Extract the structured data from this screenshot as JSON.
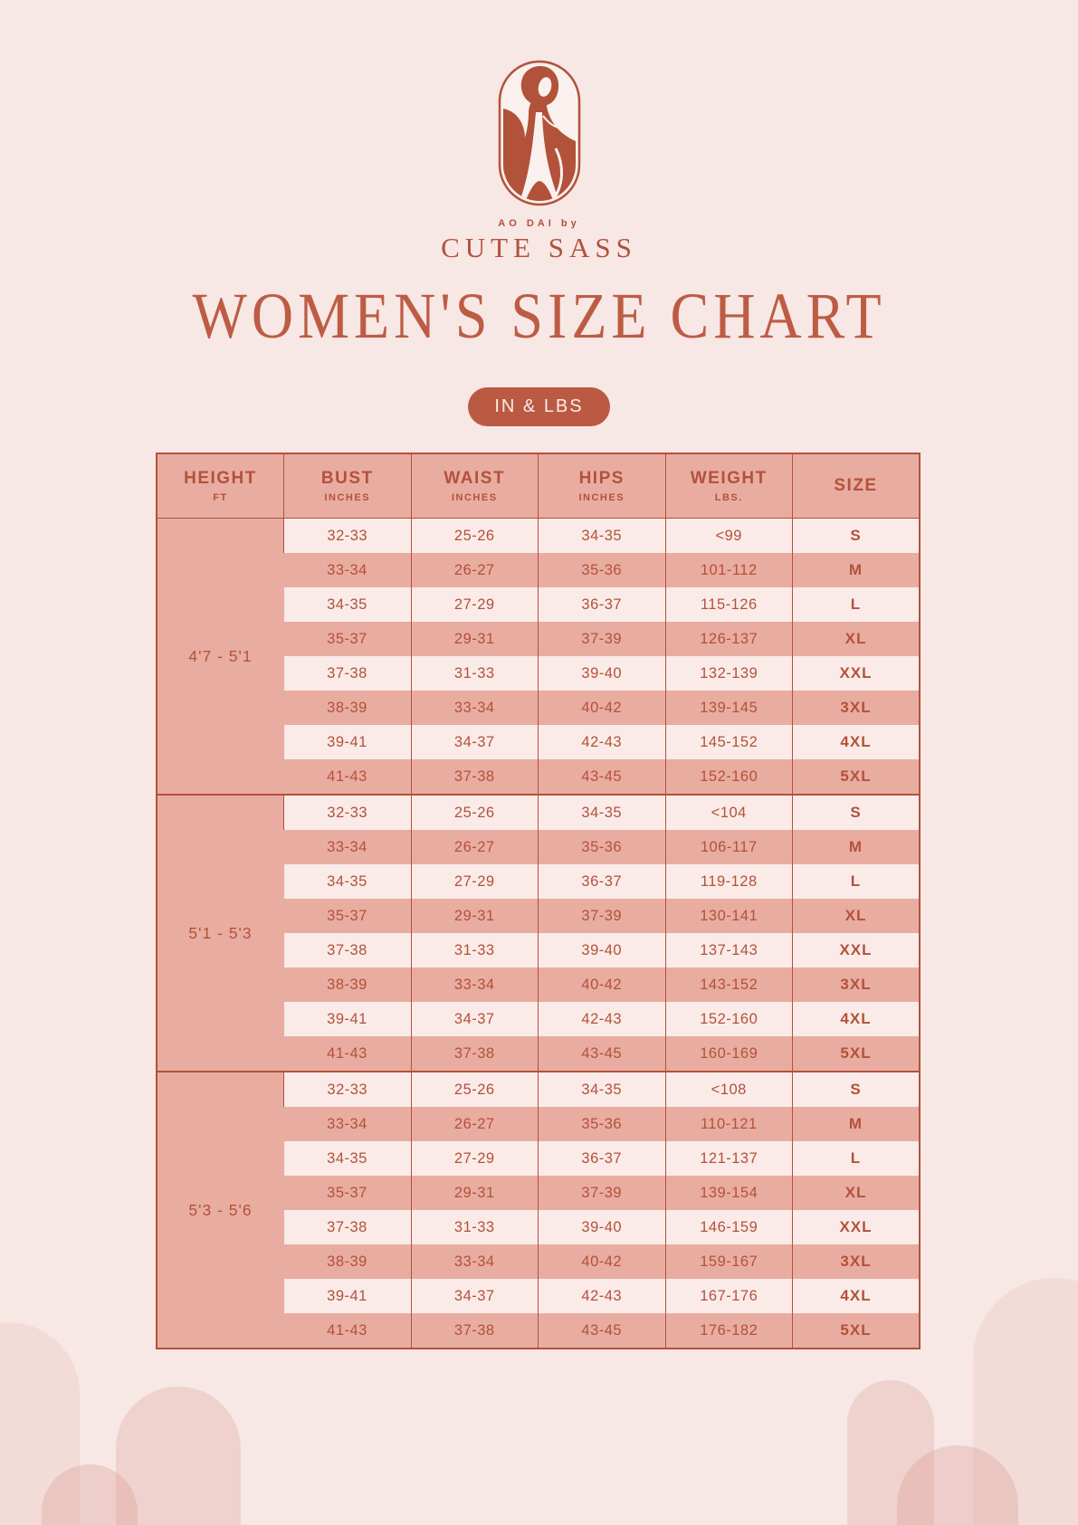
{
  "colors": {
    "background": "#f7e7e5",
    "accent_terracotta": "#b2523a",
    "title_terracotta": "#bd5c44",
    "row_pink": "#e9aca0",
    "row_cream": "#faebe8",
    "badge_background": "#ba5a42",
    "badge_text": "#f9ece8"
  },
  "brand": {
    "logo_icon": "ao-dai-woman-icon",
    "prefix": "AO DAI by",
    "name": "CUTE SASS"
  },
  "title": "WOMEN'S SIZE CHART",
  "units_badge": "IN & LBS",
  "chart_data": {
    "type": "table",
    "title": "WOMEN'S SIZE CHART",
    "units": "IN & LBS",
    "headers": [
      {
        "label": "HEIGHT",
        "sub": "FT"
      },
      {
        "label": "BUST",
        "sub": "INCHES"
      },
      {
        "label": "WAIST",
        "sub": "INCHES"
      },
      {
        "label": "HIPS",
        "sub": "INCHES"
      },
      {
        "label": "WEIGHT",
        "sub": "LBS."
      },
      {
        "label": "SIZE",
        "sub": ""
      }
    ],
    "groups": [
      {
        "height": "4'7 - 5'1",
        "rows": [
          [
            "32-33",
            "25-26",
            "34-35",
            "<99",
            "S"
          ],
          [
            "33-34",
            "26-27",
            "35-36",
            "101-112",
            "M"
          ],
          [
            "34-35",
            "27-29",
            "36-37",
            "115-126",
            "L"
          ],
          [
            "35-37",
            "29-31",
            "37-39",
            "126-137",
            "XL"
          ],
          [
            "37-38",
            "31-33",
            "39-40",
            "132-139",
            "XXL"
          ],
          [
            "38-39",
            "33-34",
            "40-42",
            "139-145",
            "3XL"
          ],
          [
            "39-41",
            "34-37",
            "42-43",
            "145-152",
            "4XL"
          ],
          [
            "41-43",
            "37-38",
            "43-45",
            "152-160",
            "5XL"
          ]
        ]
      },
      {
        "height": "5'1 - 5'3",
        "rows": [
          [
            "32-33",
            "25-26",
            "34-35",
            "<104",
            "S"
          ],
          [
            "33-34",
            "26-27",
            "35-36",
            "106-117",
            "M"
          ],
          [
            "34-35",
            "27-29",
            "36-37",
            "119-128",
            "L"
          ],
          [
            "35-37",
            "29-31",
            "37-39",
            "130-141",
            "XL"
          ],
          [
            "37-38",
            "31-33",
            "39-40",
            "137-143",
            "XXL"
          ],
          [
            "38-39",
            "33-34",
            "40-42",
            "143-152",
            "3XL"
          ],
          [
            "39-41",
            "34-37",
            "42-43",
            "152-160",
            "4XL"
          ],
          [
            "41-43",
            "37-38",
            "43-45",
            "160-169",
            "5XL"
          ]
        ]
      },
      {
        "height": "5'3 - 5'6",
        "rows": [
          [
            "32-33",
            "25-26",
            "34-35",
            "<108",
            "S"
          ],
          [
            "33-34",
            "26-27",
            "35-36",
            "110-121",
            "M"
          ],
          [
            "34-35",
            "27-29",
            "36-37",
            "121-137",
            "L"
          ],
          [
            "35-37",
            "29-31",
            "37-39",
            "139-154",
            "XL"
          ],
          [
            "37-38",
            "31-33",
            "39-40",
            "146-159",
            "XXL"
          ],
          [
            "38-39",
            "33-34",
            "40-42",
            "159-167",
            "3XL"
          ],
          [
            "39-41",
            "34-37",
            "42-43",
            "167-176",
            "4XL"
          ],
          [
            "41-43",
            "37-38",
            "43-45",
            "176-182",
            "5XL"
          ]
        ]
      }
    ]
  }
}
